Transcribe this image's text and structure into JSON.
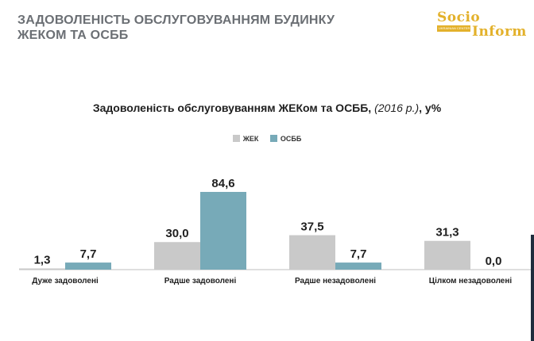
{
  "header": {
    "title": "ЗАДОВОЛЕНІСТЬ ОБСЛУГОВУВАННЯМ БУДИНКУ ЖЕКОМ ТА ОСББ"
  },
  "logo": {
    "line1": "Socio",
    "line2": "Inform",
    "tagline": "UKRAINIAN CENTER FOR PUBLIC OPINION RESEARCH"
  },
  "colors": {
    "zhek": "#c9c9c9",
    "osbb": "#77aab8",
    "title_gray": "#6b6f74",
    "logo_gold": "#e3b12b"
  },
  "chart_data": {
    "type": "bar",
    "title_main": "Задоволеність обслуговуванням ЖЕКом та ОСББ, ",
    "title_year": "(2016 р.)",
    "title_unit": ", у%",
    "categories": [
      "Дуже задоволені",
      "Радше задоволені",
      "Радше незадоволені",
      "Цілком незадоволені"
    ],
    "series": [
      {
        "name": "ЖЕК",
        "values": [
          1.3,
          30.0,
          37.5,
          31.3
        ],
        "labels": [
          "1,3",
          "30,0",
          "37,5",
          "31,3"
        ]
      },
      {
        "name": "ОСББ",
        "values": [
          7.7,
          84.6,
          7.7,
          0.0
        ],
        "labels": [
          "7,7",
          "84,6",
          "7,7",
          "0,0"
        ]
      }
    ],
    "legend_position": "top-center",
    "grid": false,
    "ylim": [
      0,
      84.6
    ]
  }
}
